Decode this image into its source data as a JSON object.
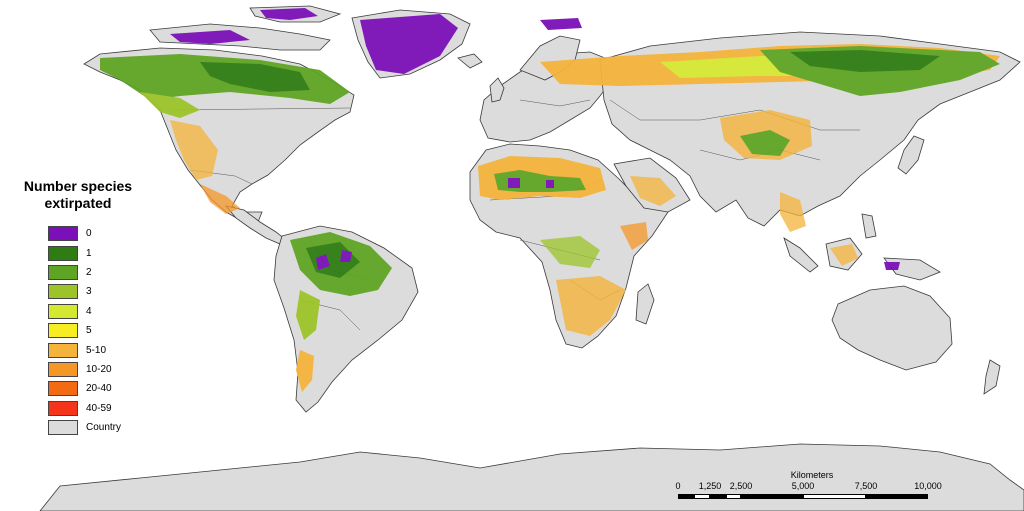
{
  "legend": {
    "title_line1": "Number species",
    "title_line2": "extirpated",
    "items": [
      {
        "label": "0",
        "color": "#7b10b8"
      },
      {
        "label": "1",
        "color": "#2f7d12"
      },
      {
        "label": "2",
        "color": "#5fa424"
      },
      {
        "label": "3",
        "color": "#9cc32a"
      },
      {
        "label": "4",
        "color": "#d4e832"
      },
      {
        "label": "5",
        "color": "#f6ee21"
      },
      {
        "label": "5-10",
        "color": "#f4b33b"
      },
      {
        "label": "10-20",
        "color": "#f49728"
      },
      {
        "label": "20-40",
        "color": "#f36a12"
      },
      {
        "label": "40-59",
        "color": "#f5341a"
      },
      {
        "label": "Country",
        "color": "#dcdcdc"
      }
    ]
  },
  "scalebar": {
    "title": "Kilometers",
    "ticks": [
      "0",
      "1,250",
      "2,500",
      "5,000",
      "7,500",
      "10,000"
    ]
  },
  "map": {
    "land_color": "#dcdcdc",
    "border_color": "#3a3a3a"
  }
}
